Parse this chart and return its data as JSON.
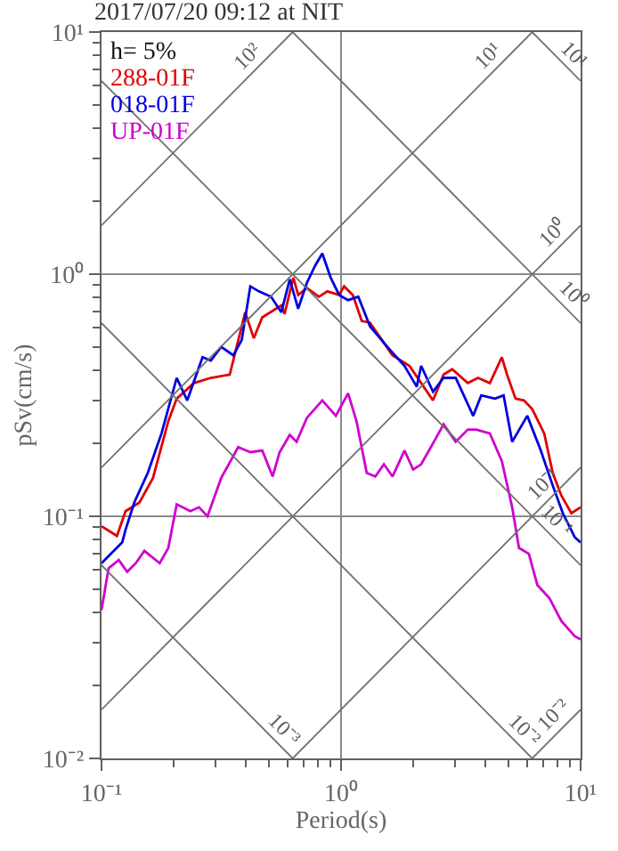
{
  "chart_data": {
    "type": "line",
    "title": "2017/07/20 09:12 at NIT",
    "xlabel": "Period(s)",
    "ylabel": "pSv(cm/s)",
    "annotations": [
      "h= 5%",
      {
        "text": "10²",
        "x": 0.454,
        "y": 7.2
      },
      {
        "text": "10¹",
        "x": 4.55,
        "y": 7.24
      },
      {
        "text": "10⁰",
        "x": 8.4,
        "y": 1.34
      },
      {
        "text": "10⁻¹",
        "x": 7.8,
        "y": 0.124
      },
      {
        "text": "10⁻²",
        "x": 8.6,
        "y": 0.0137
      },
      {
        "text": "10¹",
        "x": 8.6,
        "y": 7.3
      },
      {
        "text": "10⁰",
        "x": 8.4,
        "y": 0.75
      },
      {
        "text": "10⁻¹",
        "x": 7.2,
        "y": 0.087
      },
      {
        "text": "10⁻²",
        "x": 5.3,
        "y": 0.0119
      },
      {
        "text": "10⁻³",
        "x": 0.53,
        "y": 0.0119
      }
    ],
    "log": "xy",
    "grid": true,
    "legend": "top left",
    "xlim": [
      0.1,
      10
    ],
    "ylim": [
      0.01,
      10
    ],
    "xticks": [
      {
        "value": 0.1,
        "label": "10⁻¹"
      },
      {
        "value": 1,
        "label": "10⁰"
      },
      {
        "value": 10,
        "label": "10¹"
      },
      {
        "value": 0.2,
        "label": null
      },
      {
        "value": 0.3,
        "label": null
      },
      {
        "value": 0.4,
        "label": null
      },
      {
        "value": 0.5,
        "label": null
      },
      {
        "value": 0.6,
        "label": null
      },
      {
        "value": 0.7,
        "label": null
      },
      {
        "value": 0.8,
        "label": null
      },
      {
        "value": 0.9,
        "label": null
      },
      {
        "value": 2,
        "label": null
      },
      {
        "value": 3,
        "label": null
      },
      {
        "value": 4,
        "label": null
      },
      {
        "value": 5,
        "label": null
      },
      {
        "value": 6,
        "label": null
      },
      {
        "value": 7,
        "label": null
      },
      {
        "value": 8,
        "label": null
      },
      {
        "value": 9,
        "label": null
      }
    ],
    "yticks": [
      {
        "value": 0.01,
        "label": "10⁻²"
      },
      {
        "value": 0.1,
        "label": "10⁻¹"
      },
      {
        "value": 1,
        "label": "10⁰"
      },
      {
        "value": 10,
        "label": "10¹"
      },
      {
        "value": 0.02,
        "label": null
      },
      {
        "value": 0.03,
        "label": null
      },
      {
        "value": 0.04,
        "label": null
      },
      {
        "value": 0.05,
        "label": null
      },
      {
        "value": 0.06,
        "label": null
      },
      {
        "value": 0.07,
        "label": null
      },
      {
        "value": 0.08,
        "label": null
      },
      {
        "value": 0.09,
        "label": null
      },
      {
        "value": 0.2,
        "label": null
      },
      {
        "value": 0.3,
        "label": null
      },
      {
        "value": 0.4,
        "label": null
      },
      {
        "value": 0.5,
        "label": null
      },
      {
        "value": 0.6,
        "label": null
      },
      {
        "value": 0.7,
        "label": null
      },
      {
        "value": 0.8,
        "label": null
      },
      {
        "value": 0.9,
        "label": null
      },
      {
        "value": 2,
        "label": null
      },
      {
        "value": 3,
        "label": null
      },
      {
        "value": 4,
        "label": null
      },
      {
        "value": 5,
        "label": null
      },
      {
        "value": 6,
        "label": null
      },
      {
        "value": 7,
        "label": null
      },
      {
        "value": 8,
        "label": null
      },
      {
        "value": 9,
        "label": null
      }
    ],
    "series": [
      {
        "name": "288-01F",
        "color": "#e00000",
        "x": [
          0.1,
          0.116,
          0.126,
          0.144,
          0.164,
          0.19,
          0.206,
          0.243,
          0.286,
          0.343,
          0.398,
          0.432,
          0.469,
          0.563,
          0.581,
          0.632,
          0.662,
          0.72,
          0.808,
          0.877,
          0.982,
          1.03,
          1.12,
          1.22,
          1.32,
          1.48,
          1.64,
          1.93,
          2.16,
          2.42,
          2.68,
          2.91,
          3.38,
          3.73,
          4.18,
          4.69,
          4.93,
          5.35,
          5.8,
          6.28,
          7.05,
          7.65,
          8.3,
          9.15,
          10
        ],
        "values": [
          0.091,
          0.083,
          0.105,
          0.114,
          0.144,
          0.247,
          0.306,
          0.355,
          0.373,
          0.385,
          0.696,
          0.544,
          0.663,
          0.743,
          0.685,
          0.967,
          0.82,
          0.877,
          0.807,
          0.849,
          0.82,
          0.891,
          0.82,
          0.641,
          0.631,
          0.535,
          0.462,
          0.418,
          0.355,
          0.301,
          0.385,
          0.405,
          0.355,
          0.373,
          0.355,
          0.454,
          0.385,
          0.306,
          0.301,
          0.277,
          0.22,
          0.151,
          0.122,
          0.103,
          0.109
        ]
      },
      {
        "name": "018-01F",
        "color": "#0000e0",
        "x": [
          0.1,
          0.122,
          0.126,
          0.137,
          0.156,
          0.178,
          0.206,
          0.228,
          0.264,
          0.286,
          0.316,
          0.355,
          0.385,
          0.418,
          0.454,
          0.51,
          0.563,
          0.611,
          0.662,
          0.72,
          0.78,
          0.835,
          0.905,
          0.982,
          1.07,
          1.18,
          1.32,
          1.56,
          1.84,
          2.07,
          2.16,
          2.42,
          2.68,
          3.01,
          3.38,
          3.56,
          3.85,
          4.39,
          4.77,
          5.18,
          5.99,
          6.82,
          7.65,
          8.43,
          9.45,
          10
        ],
        "values": [
          0.064,
          0.078,
          0.088,
          0.114,
          0.151,
          0.22,
          0.373,
          0.301,
          0.454,
          0.44,
          0.501,
          0.462,
          0.535,
          0.891,
          0.849,
          0.807,
          0.696,
          0.952,
          0.72,
          0.921,
          1.086,
          1.218,
          0.967,
          0.82,
          0.781,
          0.807,
          0.61,
          0.501,
          0.418,
          0.343,
          0.418,
          0.327,
          0.373,
          0.373,
          0.291,
          0.26,
          0.316,
          0.306,
          0.316,
          0.203,
          0.26,
          0.187,
          0.134,
          0.103,
          0.082,
          0.078
        ]
      },
      {
        "name": "UP-01F",
        "color": "#d000d0",
        "x": [
          0.1,
          0.107,
          0.118,
          0.128,
          0.139,
          0.151,
          0.175,
          0.19,
          0.206,
          0.235,
          0.255,
          0.277,
          0.316,
          0.372,
          0.418,
          0.469,
          0.518,
          0.554,
          0.611,
          0.652,
          0.72,
          0.835,
          0.951,
          1.07,
          1.16,
          1.28,
          1.39,
          1.51,
          1.64,
          1.84,
          2.0,
          2.16,
          2.42,
          2.68,
          3.01,
          3.38,
          3.67,
          4.18,
          4.69,
          5.18,
          5.53,
          6.08,
          6.6,
          7.4,
          8.3,
          9.45,
          10
        ],
        "values": [
          0.041,
          0.061,
          0.066,
          0.059,
          0.064,
          0.072,
          0.064,
          0.074,
          0.112,
          0.105,
          0.109,
          0.1,
          0.144,
          0.193,
          0.184,
          0.187,
          0.146,
          0.184,
          0.217,
          0.203,
          0.255,
          0.301,
          0.26,
          0.322,
          0.247,
          0.151,
          0.146,
          0.164,
          0.146,
          0.187,
          0.156,
          0.164,
          0.2,
          0.24,
          0.203,
          0.228,
          0.228,
          0.22,
          0.169,
          0.109,
          0.074,
          0.07,
          0.052,
          0.046,
          0.037,
          0.032,
          0.031
        ]
      },
      {
        "color": "#707070",
        "x": [
          0.1,
          0.628
        ],
        "values": [
          1.59,
          10
        ]
      },
      {
        "color": "#707070",
        "x": [
          0.1,
          6.28
        ],
        "values": [
          0.159,
          10
        ]
      },
      {
        "color": "#707070",
        "x": [
          0.1,
          10
        ],
        "values": [
          0.0159,
          1.59
        ]
      },
      {
        "color": "#707070",
        "x": [
          0.628,
          10
        ],
        "values": [
          0.01,
          0.159
        ]
      },
      {
        "color": "#707070",
        "x": [
          6.28,
          10
        ],
        "values": [
          0.01,
          0.0159
        ]
      },
      {
        "color": "#707070",
        "x": [
          6.28,
          10
        ],
        "values": [
          10,
          6.28
        ]
      },
      {
        "color": "#707070",
        "x": [
          0.628,
          10
        ],
        "values": [
          10,
          0.628
        ]
      },
      {
        "color": "#707070",
        "x": [
          0.1,
          10
        ],
        "values": [
          6.28,
          0.0628
        ]
      },
      {
        "color": "#707070",
        "x": [
          0.1,
          6.28
        ],
        "values": [
          0.628,
          0.01
        ]
      },
      {
        "color": "#707070",
        "x": [
          0.1,
          0.628
        ],
        "values": [
          0.0628,
          0.01
        ]
      }
    ]
  }
}
